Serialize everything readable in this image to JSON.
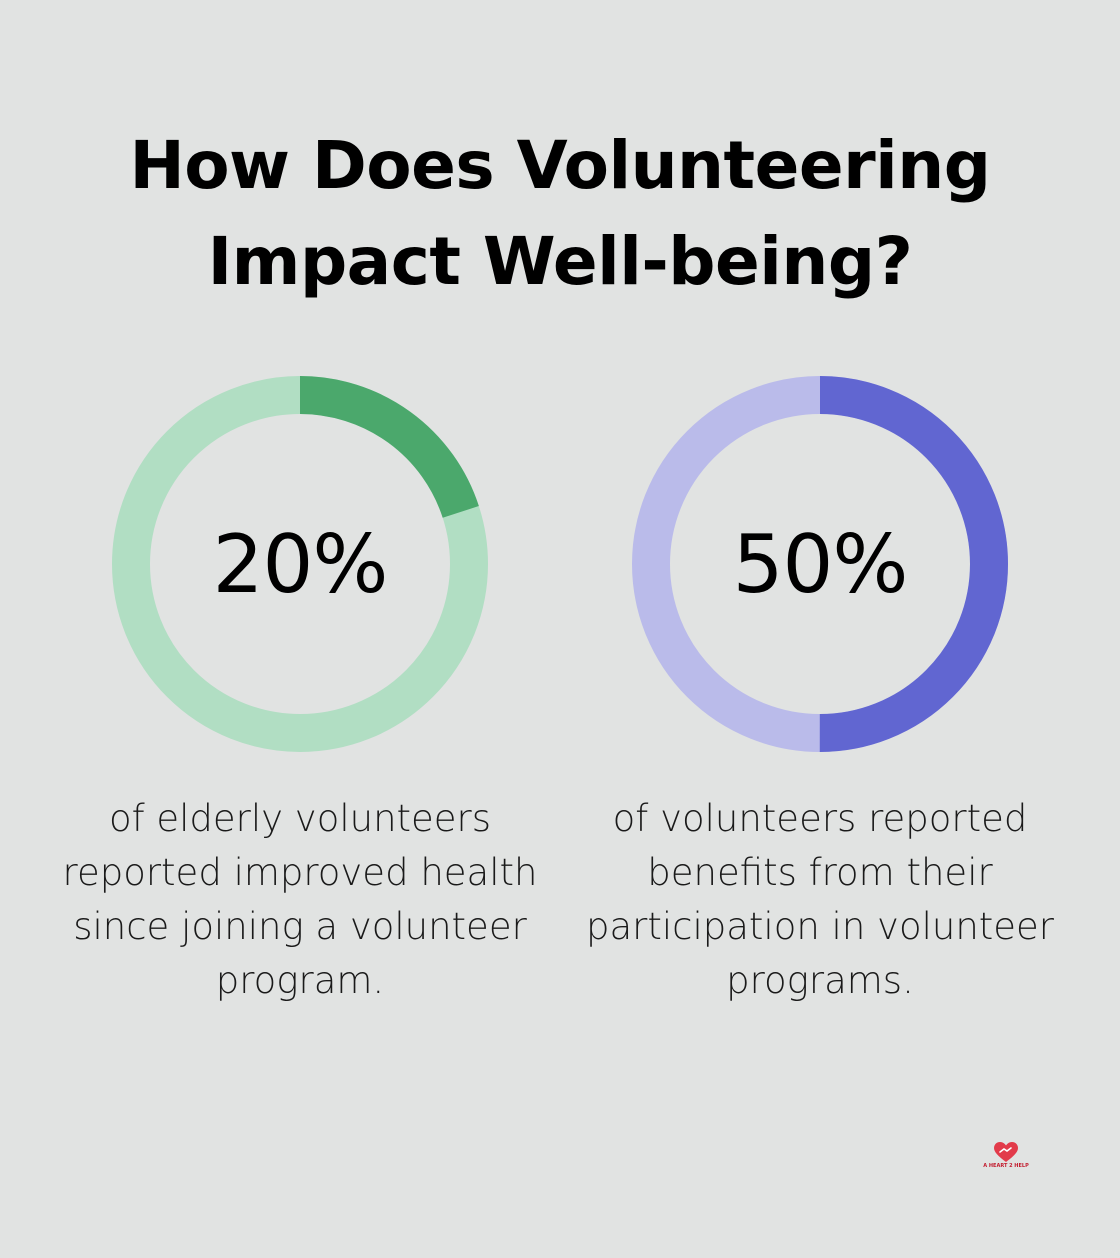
{
  "title_lines": [
    "How Does Volunteering",
    "Impact Well-being?"
  ],
  "colors": {
    "background": "#e1e3e2",
    "green_fill": "#4ba86c",
    "green_track": "#b1dec3",
    "blue_fill": "#6166d1",
    "blue_track": "#babbea",
    "logo_red": "#e23b4a"
  },
  "logo": {
    "icon": "heart-helping-hand-icon",
    "text": "A HEART 2 HELP"
  },
  "chart_data": [
    {
      "type": "pie",
      "value_label": "20%",
      "values": [
        20,
        80
      ],
      "colors": [
        "#4ba86c",
        "#b1dec3"
      ],
      "description": "of elderly volunteers reported improved health since joining a volunteer program."
    },
    {
      "type": "pie",
      "value_label": "50%",
      "values": [
        50,
        50
      ],
      "colors": [
        "#6166d1",
        "#babbea"
      ],
      "description": "of volunteers reported benefits from their participation in volunteer programs."
    }
  ]
}
